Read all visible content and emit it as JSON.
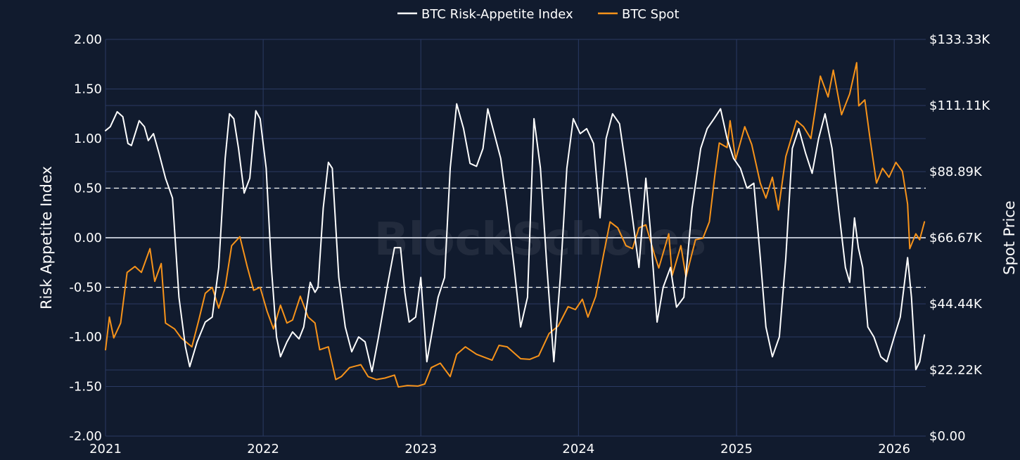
{
  "chart_data": {
    "type": "line",
    "x_axis": {
      "type": "date",
      "range": [
        "2021-01-01",
        "2026-03-15"
      ],
      "tick_labels": [
        "2021",
        "2022",
        "2023",
        "2024",
        "2025",
        "2026"
      ],
      "tick_dates": [
        "2021-01-01",
        "2022-01-01",
        "2023-01-01",
        "2024-01-01",
        "2025-01-01",
        "2026-01-01"
      ]
    },
    "y_left": {
      "label": "Risk Appetite Index",
      "range": [
        -2.0,
        2.0
      ],
      "tick_values": [
        -2.0,
        -1.5,
        -1.0,
        -0.5,
        0.0,
        0.5,
        1.0,
        1.5,
        2.0
      ],
      "tick_labels": [
        "-2.00",
        "-1.50",
        "-1.00",
        "-0.50",
        "0.00",
        "0.50",
        "1.00",
        "1.50",
        "2.00"
      ],
      "reference_lines": [
        {
          "value": 0.5,
          "style": "dashed"
        },
        {
          "value": -0.5,
          "style": "dashed"
        },
        {
          "value": 0.0,
          "style": "solid"
        }
      ]
    },
    "y_right": {
      "label": "Spot Price",
      "range": [
        0,
        133330
      ],
      "tick_values": [
        0,
        22220,
        44440,
        66670,
        88890,
        111110,
        133330
      ],
      "tick_labels": [
        "$0.00",
        "$22.22K",
        "$44.44K",
        "$66.67K",
        "$88.89K",
        "$111.11K",
        "$133.33K"
      ]
    },
    "grid": true,
    "legend_position": "top-center",
    "watermark": "BlockScholes",
    "series": [
      {
        "name": "BTC Risk-Appetite Index",
        "axis": "left",
        "color": "#ffffff",
        "points": [
          [
            "2021-01-01",
            1.08
          ],
          [
            "2021-01-12",
            1.12
          ],
          [
            "2021-01-28",
            1.27
          ],
          [
            "2021-02-10",
            1.22
          ],
          [
            "2021-02-22",
            0.95
          ],
          [
            "2021-03-02",
            0.93
          ],
          [
            "2021-03-20",
            1.18
          ],
          [
            "2021-04-01",
            1.12
          ],
          [
            "2021-04-10",
            0.98
          ],
          [
            "2021-04-22",
            1.05
          ],
          [
            "2021-05-05",
            0.85
          ],
          [
            "2021-05-20",
            0.6
          ],
          [
            "2021-06-05",
            0.4
          ],
          [
            "2021-06-20",
            -0.6
          ],
          [
            "2021-07-05",
            -1.1
          ],
          [
            "2021-07-15",
            -1.3
          ],
          [
            "2021-08-01",
            -1.05
          ],
          [
            "2021-08-20",
            -0.85
          ],
          [
            "2021-09-05",
            -0.8
          ],
          [
            "2021-09-20",
            -0.3
          ],
          [
            "2021-10-05",
            0.8
          ],
          [
            "2021-10-15",
            1.25
          ],
          [
            "2021-10-25",
            1.2
          ],
          [
            "2021-11-05",
            0.9
          ],
          [
            "2021-11-18",
            0.45
          ],
          [
            "2021-12-01",
            0.6
          ],
          [
            "2021-12-15",
            1.28
          ],
          [
            "2021-12-25",
            1.2
          ],
          [
            "2022-01-08",
            0.7
          ],
          [
            "2022-01-20",
            -0.3
          ],
          [
            "2022-02-01",
            -1.0
          ],
          [
            "2022-02-10",
            -1.2
          ],
          [
            "2022-02-25",
            -1.05
          ],
          [
            "2022-03-10",
            -0.95
          ],
          [
            "2022-03-25",
            -1.02
          ],
          [
            "2022-04-05",
            -0.9
          ],
          [
            "2022-04-20",
            -0.45
          ],
          [
            "2022-05-01",
            -0.55
          ],
          [
            "2022-05-08",
            -0.5
          ],
          [
            "2022-05-20",
            0.3
          ],
          [
            "2022-06-01",
            0.76
          ],
          [
            "2022-06-10",
            0.7
          ],
          [
            "2022-06-25",
            -0.4
          ],
          [
            "2022-07-10",
            -0.9
          ],
          [
            "2022-07-25",
            -1.15
          ],
          [
            "2022-08-10",
            -1.0
          ],
          [
            "2022-08-25",
            -1.05
          ],
          [
            "2022-09-10",
            -1.35
          ],
          [
            "2022-09-25",
            -1.0
          ],
          [
            "2022-10-15",
            -0.5
          ],
          [
            "2022-11-01",
            -0.1
          ],
          [
            "2022-11-15",
            -0.1
          ],
          [
            "2022-11-25",
            -0.55
          ],
          [
            "2022-12-05",
            -0.85
          ],
          [
            "2022-12-20",
            -0.8
          ],
          [
            "2023-01-01",
            -0.4
          ],
          [
            "2023-01-15",
            -1.25
          ],
          [
            "2023-01-25",
            -1.0
          ],
          [
            "2023-02-10",
            -0.6
          ],
          [
            "2023-02-25",
            -0.4
          ],
          [
            "2023-03-10",
            0.7
          ],
          [
            "2023-03-25",
            1.35
          ],
          [
            "2023-04-10",
            1.1
          ],
          [
            "2023-04-25",
            0.75
          ],
          [
            "2023-05-10",
            0.72
          ],
          [
            "2023-05-25",
            0.9
          ],
          [
            "2023-06-05",
            1.3
          ],
          [
            "2023-06-20",
            1.05
          ],
          [
            "2023-07-05",
            0.8
          ],
          [
            "2023-07-20",
            0.3
          ],
          [
            "2023-08-05",
            -0.3
          ],
          [
            "2023-08-20",
            -0.9
          ],
          [
            "2023-09-05",
            -0.6
          ],
          [
            "2023-09-20",
            1.2
          ],
          [
            "2023-10-05",
            0.7
          ],
          [
            "2023-10-20",
            -0.3
          ],
          [
            "2023-11-05",
            -1.25
          ],
          [
            "2023-11-20",
            -0.4
          ],
          [
            "2023-12-05",
            0.7
          ],
          [
            "2023-12-20",
            1.2
          ],
          [
            "2024-01-05",
            1.05
          ],
          [
            "2024-01-20",
            1.1
          ],
          [
            "2024-02-05",
            0.95
          ],
          [
            "2024-02-20",
            0.2
          ],
          [
            "2024-03-05",
            1.0
          ],
          [
            "2024-03-20",
            1.25
          ],
          [
            "2024-04-05",
            1.15
          ],
          [
            "2024-04-20",
            0.7
          ],
          [
            "2024-05-05",
            0.2
          ],
          [
            "2024-05-20",
            -0.3
          ],
          [
            "2024-06-05",
            0.6
          ],
          [
            "2024-06-15",
            0.1
          ],
          [
            "2024-07-01",
            -0.85
          ],
          [
            "2024-07-15",
            -0.5
          ],
          [
            "2024-08-01",
            -0.3
          ],
          [
            "2024-08-15",
            -0.7
          ],
          [
            "2024-09-01",
            -0.6
          ],
          [
            "2024-09-20",
            0.3
          ],
          [
            "2024-10-10",
            0.9
          ],
          [
            "2024-10-25",
            1.1
          ],
          [
            "2024-11-10",
            1.2
          ],
          [
            "2024-11-25",
            1.3
          ],
          [
            "2024-12-10",
            1.0
          ],
          [
            "2024-12-25",
            0.8
          ],
          [
            "2025-01-10",
            0.7
          ],
          [
            "2025-01-25",
            0.5
          ],
          [
            "2025-02-10",
            0.55
          ],
          [
            "2025-02-25",
            -0.2
          ],
          [
            "2025-03-10",
            -0.9
          ],
          [
            "2025-03-25",
            -1.2
          ],
          [
            "2025-04-10",
            -1.0
          ],
          [
            "2025-04-25",
            -0.2
          ],
          [
            "2025-05-10",
            0.9
          ],
          [
            "2025-05-25",
            1.1
          ],
          [
            "2025-06-10",
            0.85
          ],
          [
            "2025-06-25",
            0.65
          ],
          [
            "2025-07-10",
            1.0
          ],
          [
            "2025-07-25",
            1.25
          ],
          [
            "2025-08-10",
            0.9
          ],
          [
            "2025-08-25",
            0.3
          ],
          [
            "2025-09-10",
            -0.3
          ],
          [
            "2025-09-20",
            -0.45
          ],
          [
            "2025-10-01",
            0.2
          ],
          [
            "2025-10-10",
            -0.1
          ],
          [
            "2025-10-20",
            -0.3
          ],
          [
            "2025-11-01",
            -0.9
          ],
          [
            "2025-11-15",
            -1.0
          ],
          [
            "2025-12-01",
            -1.2
          ],
          [
            "2025-12-15",
            -1.25
          ],
          [
            "2026-01-01",
            -1.0
          ],
          [
            "2026-01-15",
            -0.8
          ],
          [
            "2026-02-01",
            -0.2
          ],
          [
            "2026-02-10",
            -0.6
          ],
          [
            "2026-02-20",
            -1.33
          ],
          [
            "2026-03-01",
            -1.25
          ],
          [
            "2026-03-12",
            -0.98
          ]
        ]
      },
      {
        "name": "BTC Spot",
        "axis": "right",
        "color": "#f7931a",
        "points": [
          [
            "2021-01-01",
            29000
          ],
          [
            "2021-01-10",
            40000
          ],
          [
            "2021-01-20",
            33000
          ],
          [
            "2021-02-05",
            38000
          ],
          [
            "2021-02-20",
            55000
          ],
          [
            "2021-03-10",
            57000
          ],
          [
            "2021-03-25",
            55000
          ],
          [
            "2021-04-14",
            63000
          ],
          [
            "2021-04-25",
            52000
          ],
          [
            "2021-05-10",
            58000
          ],
          [
            "2021-05-20",
            38000
          ],
          [
            "2021-06-10",
            36000
          ],
          [
            "2021-06-25",
            33000
          ],
          [
            "2021-07-20",
            30000
          ],
          [
            "2021-08-05",
            39000
          ],
          [
            "2021-08-20",
            48000
          ],
          [
            "2021-09-05",
            50000
          ],
          [
            "2021-09-20",
            43000
          ],
          [
            "2021-10-05",
            50000
          ],
          [
            "2021-10-20",
            64000
          ],
          [
            "2021-11-08",
            67000
          ],
          [
            "2021-11-25",
            57000
          ],
          [
            "2021-12-10",
            49000
          ],
          [
            "2021-12-25",
            50000
          ],
          [
            "2022-01-10",
            42000
          ],
          [
            "2022-01-25",
            36000
          ],
          [
            "2022-02-10",
            44000
          ],
          [
            "2022-02-25",
            38000
          ],
          [
            "2022-03-10",
            39000
          ],
          [
            "2022-03-28",
            47000
          ],
          [
            "2022-04-15",
            40000
          ],
          [
            "2022-05-01",
            38000
          ],
          [
            "2022-05-12",
            29000
          ],
          [
            "2022-06-01",
            30000
          ],
          [
            "2022-06-18",
            19000
          ],
          [
            "2022-07-01",
            20000
          ],
          [
            "2022-07-20",
            23000
          ],
          [
            "2022-08-15",
            24000
          ],
          [
            "2022-09-01",
            20000
          ],
          [
            "2022-09-20",
            19000
          ],
          [
            "2022-10-10",
            19500
          ],
          [
            "2022-11-01",
            20500
          ],
          [
            "2022-11-10",
            16500
          ],
          [
            "2022-12-01",
            17000
          ],
          [
            "2022-12-25",
            16800
          ],
          [
            "2023-01-10",
            17500
          ],
          [
            "2023-01-25",
            23000
          ],
          [
            "2023-02-15",
            24500
          ],
          [
            "2023-03-10",
            20000
          ],
          [
            "2023-03-25",
            27500
          ],
          [
            "2023-04-14",
            30000
          ],
          [
            "2023-05-10",
            27500
          ],
          [
            "2023-06-15",
            25500
          ],
          [
            "2023-07-01",
            30500
          ],
          [
            "2023-07-20",
            30000
          ],
          [
            "2023-08-20",
            26000
          ],
          [
            "2023-09-10",
            25800
          ],
          [
            "2023-10-01",
            27000
          ],
          [
            "2023-10-25",
            34500
          ],
          [
            "2023-11-15",
            37000
          ],
          [
            "2023-12-08",
            43500
          ],
          [
            "2023-12-25",
            42500
          ],
          [
            "2024-01-10",
            46000
          ],
          [
            "2024-01-23",
            40000
          ],
          [
            "2024-02-10",
            47000
          ],
          [
            "2024-02-28",
            61000
          ],
          [
            "2024-03-14",
            72000
          ],
          [
            "2024-04-01",
            70000
          ],
          [
            "2024-04-20",
            64000
          ],
          [
            "2024-05-05",
            63000
          ],
          [
            "2024-05-20",
            70000
          ],
          [
            "2024-06-05",
            71000
          ],
          [
            "2024-06-25",
            61000
          ],
          [
            "2024-07-05",
            56500
          ],
          [
            "2024-07-28",
            68000
          ],
          [
            "2024-08-05",
            54000
          ],
          [
            "2024-08-25",
            64000
          ],
          [
            "2024-09-06",
            53500
          ],
          [
            "2024-09-28",
            66000
          ],
          [
            "2024-10-15",
            66500
          ],
          [
            "2024-10-30",
            72000
          ],
          [
            "2024-11-12",
            88000
          ],
          [
            "2024-11-22",
            98500
          ],
          [
            "2024-12-10",
            97000
          ],
          [
            "2024-12-17",
            106000
          ],
          [
            "2024-12-30",
            93000
          ],
          [
            "2025-01-20",
            104000
          ],
          [
            "2025-02-05",
            98000
          ],
          [
            "2025-02-25",
            85000
          ],
          [
            "2025-03-10",
            80000
          ],
          [
            "2025-03-25",
            87000
          ],
          [
            "2025-04-08",
            76000
          ],
          [
            "2025-04-25",
            94000
          ],
          [
            "2025-05-20",
            106000
          ],
          [
            "2025-06-05",
            104000
          ],
          [
            "2025-06-22",
            100000
          ],
          [
            "2025-07-14",
            121000
          ],
          [
            "2025-08-01",
            114000
          ],
          [
            "2025-08-13",
            123000
          ],
          [
            "2025-09-01",
            108000
          ],
          [
            "2025-09-20",
            115000
          ],
          [
            "2025-10-06",
            125500
          ],
          [
            "2025-10-11",
            111000
          ],
          [
            "2025-10-25",
            113000
          ],
          [
            "2025-11-05",
            101000
          ],
          [
            "2025-11-21",
            85000
          ],
          [
            "2025-12-05",
            90000
          ],
          [
            "2025-12-20",
            87000
          ],
          [
            "2026-01-05",
            92000
          ],
          [
            "2026-01-20",
            89000
          ],
          [
            "2026-02-01",
            78000
          ],
          [
            "2026-02-06",
            63000
          ],
          [
            "2026-02-20",
            68000
          ],
          [
            "2026-03-01",
            66000
          ],
          [
            "2026-03-12",
            72000
          ]
        ]
      }
    ]
  }
}
